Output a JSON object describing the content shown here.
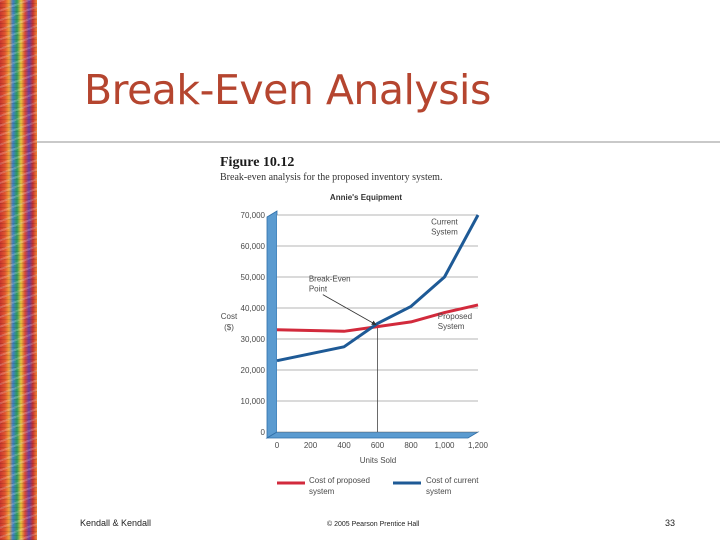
{
  "slide": {
    "title": "Break-Even Analysis",
    "figure_number": "Figure 10.12",
    "figure_caption": "Break-even analysis for the proposed inventory system.",
    "footer_left": "Kendall & Kendall",
    "footer_center": "© 2005 Pearson Prentice Hall",
    "page_number": "33"
  },
  "chart_data": {
    "type": "line",
    "title": "Annie's Equipment",
    "xlabel": "Units Sold",
    "ylabel_lines": [
      "Cost",
      "($)"
    ],
    "x_ticks": [
      "0",
      "200",
      "400",
      "600",
      "800",
      "1,000",
      "1,200"
    ],
    "y_ticks": [
      "0",
      "10,000",
      "20,000",
      "30,000",
      "40,000",
      "50,000",
      "60,000",
      "70,000"
    ],
    "xlim": [
      0,
      1200
    ],
    "ylim": [
      0,
      70000
    ],
    "grid": true,
    "legend_position": "bottom",
    "series": [
      {
        "name": "Cost of proposed system",
        "name_lines": [
          "Cost of proposed",
          "system"
        ],
        "color": "#d22a3c",
        "x": [
          0,
          400,
          600,
          800,
          1000,
          1200
        ],
        "y": [
          33000,
          32500,
          34000,
          35500,
          38500,
          41000
        ]
      },
      {
        "name": "Cost of current system",
        "name_lines": [
          "Cost of current",
          "system"
        ],
        "color": "#1e5a96",
        "x": [
          0,
          400,
          600,
          800,
          1000,
          1200
        ],
        "y": [
          23000,
          27500,
          35000,
          40500,
          50000,
          70000
        ]
      }
    ],
    "annotations": [
      {
        "lines": [
          "Current",
          "System"
        ],
        "x": 920,
        "y": 67000
      },
      {
        "lines": [
          "Break-Even",
          "Point"
        ],
        "x": 190,
        "y": 48500,
        "arrow_to": {
          "x": 590,
          "y": 34000
        }
      },
      {
        "lines": [
          "Proposed",
          "System"
        ],
        "x": 960,
        "y": 36500
      }
    ],
    "break_even": {
      "x": 600,
      "y": 34000
    },
    "colors": {
      "axis_wall": "#5b9bd0",
      "axis_wall_dark": "#2f6fa8",
      "grid": "#6a6a6a",
      "text": "#4a4a4a"
    }
  }
}
